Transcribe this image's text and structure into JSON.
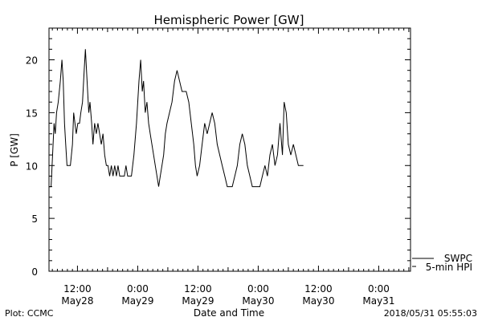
{
  "chart_data": {
    "type": "line",
    "title": "Hemispheric Power [GW]",
    "ylabel": "P [GW]",
    "xlabel": "Date and Time",
    "ylim": [
      0,
      23
    ],
    "xlim": [
      "2018-05-28T06:20",
      "2018-05-31T06:20"
    ],
    "yticks": [
      0,
      5,
      10,
      15,
      20
    ],
    "xticks": [
      {
        "t": "2018-05-28T12:00",
        "time": "12:00",
        "date": "May28"
      },
      {
        "t": "2018-05-29T00:00",
        "time": "0:00",
        "date": "May29"
      },
      {
        "t": "2018-05-29T12:00",
        "time": "12:00",
        "date": "May29"
      },
      {
        "t": "2018-05-30T00:00",
        "time": "0:00",
        "date": "May30"
      },
      {
        "t": "2018-05-30T12:00",
        "time": "12:00",
        "date": "May30"
      },
      {
        "t": "2018-05-31T00:00",
        "time": "0:00",
        "date": "May31"
      }
    ],
    "grid": false,
    "legend_position": "bottom-right",
    "series": [
      {
        "name": "SWPC",
        "color": "#000000",
        "points": [
          [
            "2018-05-28T06:20",
            8
          ],
          [
            "2018-05-28T06:45",
            8
          ],
          [
            "2018-05-28T07:20",
            14
          ],
          [
            "2018-05-28T07:35",
            13
          ],
          [
            "2018-05-28T07:50",
            15
          ],
          [
            "2018-05-28T08:10",
            16
          ],
          [
            "2018-05-28T08:35",
            18
          ],
          [
            "2018-05-28T08:55",
            20
          ],
          [
            "2018-05-28T09:10",
            18
          ],
          [
            "2018-05-28T09:25",
            14
          ],
          [
            "2018-05-28T09:40",
            12
          ],
          [
            "2018-05-28T09:55",
            10
          ],
          [
            "2018-05-28T10:35",
            10
          ],
          [
            "2018-05-28T11:00",
            12
          ],
          [
            "2018-05-28T11:15",
            15
          ],
          [
            "2018-05-28T11:30",
            14
          ],
          [
            "2018-05-28T11:45",
            13
          ],
          [
            "2018-05-28T12:05",
            14
          ],
          [
            "2018-05-28T12:25",
            14
          ],
          [
            "2018-05-28T12:40",
            15
          ],
          [
            "2018-05-28T13:00",
            16
          ],
          [
            "2018-05-28T13:20",
            19
          ],
          [
            "2018-05-28T13:35",
            21
          ],
          [
            "2018-05-28T13:55",
            18
          ],
          [
            "2018-05-28T14:15",
            15
          ],
          [
            "2018-05-28T14:30",
            16
          ],
          [
            "2018-05-28T14:50",
            14
          ],
          [
            "2018-05-28T15:05",
            12
          ],
          [
            "2018-05-28T15:25",
            14
          ],
          [
            "2018-05-28T15:45",
            13
          ],
          [
            "2018-05-28T16:05",
            14
          ],
          [
            "2018-05-28T16:25",
            13
          ],
          [
            "2018-05-28T16:45",
            12
          ],
          [
            "2018-05-28T17:05",
            13
          ],
          [
            "2018-05-28T17:25",
            11
          ],
          [
            "2018-05-28T17:45",
            10
          ],
          [
            "2018-05-28T18:05",
            10
          ],
          [
            "2018-05-28T18:25",
            9
          ],
          [
            "2018-05-28T18:45",
            10
          ],
          [
            "2018-05-28T19:05",
            9
          ],
          [
            "2018-05-28T19:25",
            10
          ],
          [
            "2018-05-28T19:45",
            9
          ],
          [
            "2018-05-28T20:05",
            10
          ],
          [
            "2018-05-28T20:25",
            9
          ],
          [
            "2018-05-28T21:20",
            9
          ],
          [
            "2018-05-28T21:40",
            10
          ],
          [
            "2018-05-28T22:00",
            9
          ],
          [
            "2018-05-28T22:20",
            9
          ],
          [
            "2018-05-28T22:45",
            9
          ],
          [
            "2018-05-28T23:15",
            11
          ],
          [
            "2018-05-28T23:45",
            14
          ],
          [
            "2018-05-29T00:15",
            18
          ],
          [
            "2018-05-29T00:35",
            20
          ],
          [
            "2018-05-29T00:55",
            17
          ],
          [
            "2018-05-29T01:10",
            18
          ],
          [
            "2018-05-29T01:30",
            15
          ],
          [
            "2018-05-29T01:50",
            16
          ],
          [
            "2018-05-29T02:10",
            14
          ],
          [
            "2018-05-29T02:30",
            13
          ],
          [
            "2018-05-29T02:50",
            12
          ],
          [
            "2018-05-29T03:10",
            11
          ],
          [
            "2018-05-29T03:30",
            10
          ],
          [
            "2018-05-29T03:50",
            9
          ],
          [
            "2018-05-29T04:10",
            8
          ],
          [
            "2018-05-29T04:30",
            9
          ],
          [
            "2018-05-29T04:50",
            10
          ],
          [
            "2018-05-29T05:10",
            11
          ],
          [
            "2018-05-29T05:30",
            13
          ],
          [
            "2018-05-29T05:50",
            14
          ],
          [
            "2018-05-29T06:20",
            15
          ],
          [
            "2018-05-29T06:50",
            16
          ],
          [
            "2018-05-29T07:20",
            18
          ],
          [
            "2018-05-29T07:50",
            19
          ],
          [
            "2018-05-29T08:20",
            18
          ],
          [
            "2018-05-29T08:50",
            17
          ],
          [
            "2018-05-29T09:40",
            17
          ],
          [
            "2018-05-29T10:10",
            16
          ],
          [
            "2018-05-29T10:40",
            14
          ],
          [
            "2018-05-29T11:10",
            12
          ],
          [
            "2018-05-29T11:30",
            10
          ],
          [
            "2018-05-29T11:50",
            9
          ],
          [
            "2018-05-29T12:20",
            10
          ],
          [
            "2018-05-29T12:50",
            12
          ],
          [
            "2018-05-29T13:20",
            14
          ],
          [
            "2018-05-29T13:50",
            13
          ],
          [
            "2018-05-29T14:20",
            14
          ],
          [
            "2018-05-29T14:50",
            15
          ],
          [
            "2018-05-29T15:20",
            14
          ],
          [
            "2018-05-29T15:50",
            12
          ],
          [
            "2018-05-29T16:20",
            11
          ],
          [
            "2018-05-29T16:50",
            10
          ],
          [
            "2018-05-29T17:20",
            9
          ],
          [
            "2018-05-29T17:50",
            8
          ],
          [
            "2018-05-29T18:50",
            8
          ],
          [
            "2018-05-29T19:20",
            9
          ],
          [
            "2018-05-29T19:50",
            10
          ],
          [
            "2018-05-29T20:20",
            12
          ],
          [
            "2018-05-29T20:50",
            13
          ],
          [
            "2018-05-29T21:20",
            12
          ],
          [
            "2018-05-29T21:50",
            10
          ],
          [
            "2018-05-29T22:20",
            9
          ],
          [
            "2018-05-29T22:50",
            8
          ],
          [
            "2018-05-30T00:20",
            8
          ],
          [
            "2018-05-30T00:50",
            9
          ],
          [
            "2018-05-30T01:20",
            10
          ],
          [
            "2018-05-30T01:50",
            9
          ],
          [
            "2018-05-30T02:20",
            11
          ],
          [
            "2018-05-30T02:50",
            12
          ],
          [
            "2018-05-30T03:20",
            10
          ],
          [
            "2018-05-30T03:50",
            11
          ],
          [
            "2018-05-30T04:20",
            14
          ],
          [
            "2018-05-30T04:50",
            11
          ],
          [
            "2018-05-30T05:10",
            16
          ],
          [
            "2018-05-30T05:35",
            15
          ],
          [
            "2018-05-30T06:00",
            12
          ],
          [
            "2018-05-30T06:30",
            11
          ],
          [
            "2018-05-30T07:00",
            12
          ],
          [
            "2018-05-30T07:30",
            11
          ],
          [
            "2018-05-30T08:00",
            10
          ],
          [
            "2018-05-30T09:00",
            10
          ]
        ]
      },
      {
        "name": "5-min HPI",
        "color": "#000000",
        "points": []
      }
    ]
  },
  "footer": {
    "left": "Plot: CCMC",
    "right": "2018/05/31 05:55:03"
  }
}
